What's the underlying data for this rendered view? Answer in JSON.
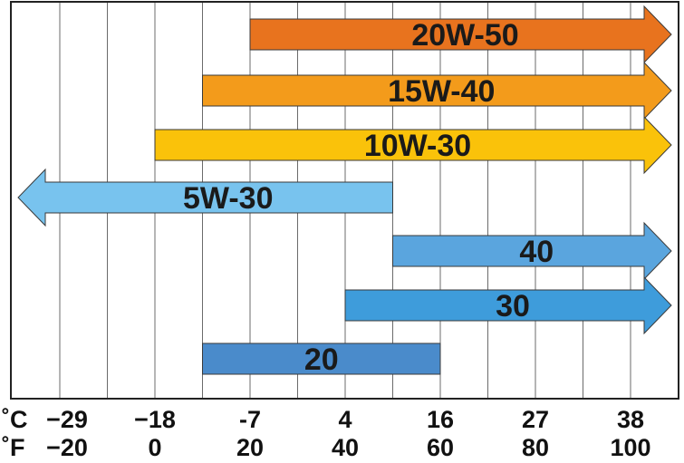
{
  "chart_data": {
    "type": "bar",
    "title": "",
    "scale_labels": {
      "celsius": "˚C",
      "fahrenheit": "˚F"
    },
    "x_ticks_f": [
      -20,
      0,
      20,
      40,
      60,
      80,
      100
    ],
    "x_tick_labels_c": [
      "−29",
      "−18",
      "-7",
      "4",
      "16",
      "27",
      "38"
    ],
    "x_tick_labels_f": [
      "−20",
      "0",
      "20",
      "40",
      "60",
      "80",
      "100"
    ],
    "xlim_f": [
      -30,
      110
    ],
    "grid": true,
    "series": [
      {
        "name": "20W-50",
        "from_f": 20,
        "to_f": 110,
        "arrow_left": false,
        "arrow_right": true,
        "color": "#E8731E"
      },
      {
        "name": "15W-40",
        "from_f": 10,
        "to_f": 110,
        "arrow_left": false,
        "arrow_right": true,
        "color": "#F39B1B"
      },
      {
        "name": "10W-30",
        "from_f": 0,
        "to_f": 110,
        "arrow_left": false,
        "arrow_right": true,
        "color": "#FAC20A"
      },
      {
        "name": "5W-30",
        "from_f": -30,
        "to_f": 50,
        "arrow_left": true,
        "arrow_right": false,
        "color": "#78C3EE"
      },
      {
        "name": "40",
        "from_f": 50,
        "to_f": 110,
        "arrow_left": false,
        "arrow_right": true,
        "color": "#5AA5DE"
      },
      {
        "name": "30",
        "from_f": 40,
        "to_f": 110,
        "arrow_left": false,
        "arrow_right": true,
        "color": "#3E9CDB"
      },
      {
        "name": "20",
        "from_f": 10,
        "to_f": 60,
        "arrow_left": false,
        "arrow_right": false,
        "color": "#4A8BCB"
      }
    ]
  }
}
